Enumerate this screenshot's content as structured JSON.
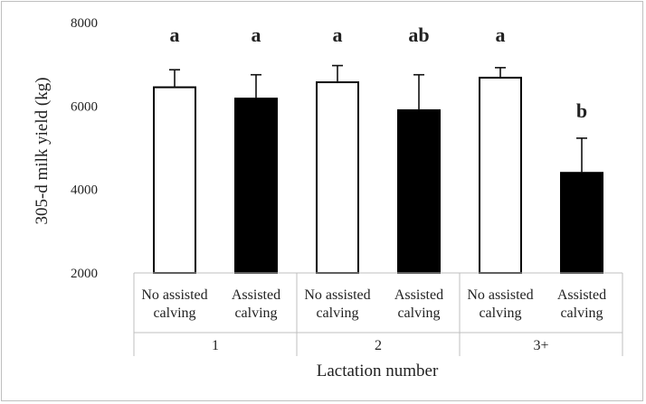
{
  "chart_data": {
    "type": "bar",
    "ylabel": "305-d milk yield (kg)",
    "xlabel": "Lactation number",
    "ylim": [
      2000,
      8000
    ],
    "yticks": [
      "2000",
      "4000",
      "6000",
      "8000"
    ],
    "ytick_values": [
      2000,
      4000,
      6000,
      8000
    ],
    "groups": [
      "1",
      "2",
      "3+"
    ],
    "categories": [
      [
        "No assisted",
        "calving"
      ],
      [
        "Assisted",
        "calving"
      ],
      [
        "No assisted",
        "calving"
      ],
      [
        "Assisted",
        "calving"
      ],
      [
        "No assisted",
        "calving"
      ],
      [
        "Assisted",
        "calving"
      ]
    ],
    "values": [
      6450,
      6180,
      6570,
      5900,
      6680,
      4400
    ],
    "errors": [
      420,
      570,
      400,
      850,
      240,
      830
    ],
    "bar_colors": [
      "#ffffff",
      "#000000",
      "#ffffff",
      "#000000",
      "#ffffff",
      "#000000"
    ],
    "significance_labels": [
      "a",
      "a",
      "a",
      "ab",
      "a",
      "b"
    ],
    "grid": false
  }
}
